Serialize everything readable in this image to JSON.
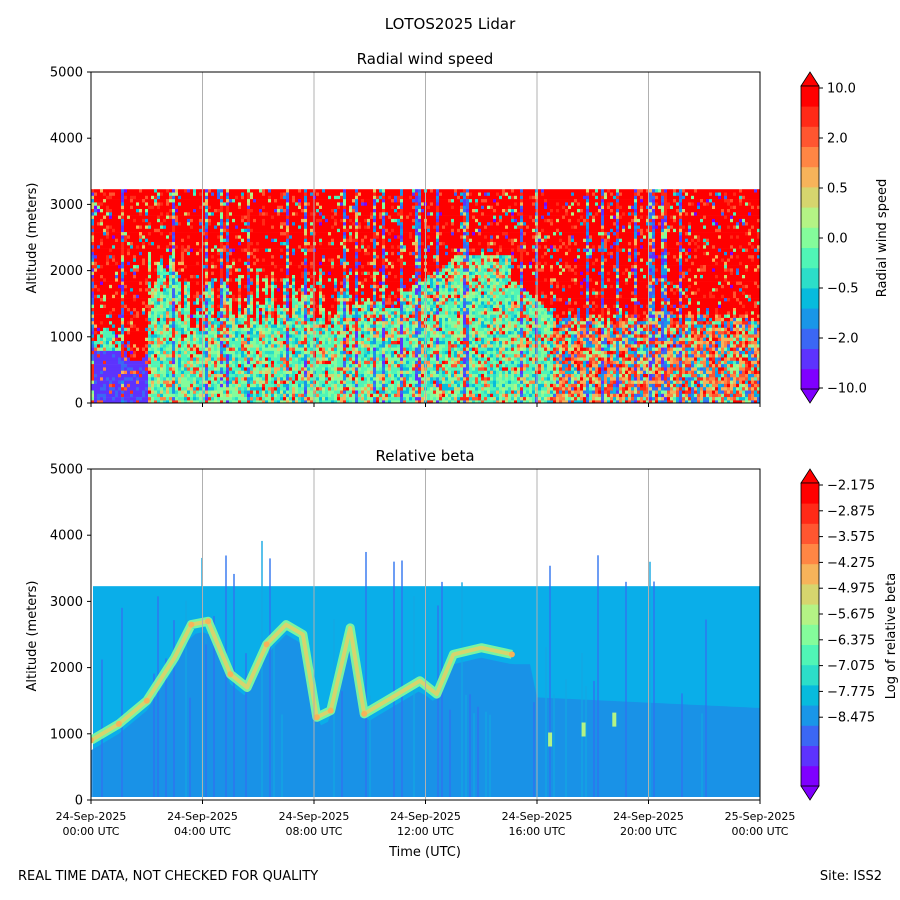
{
  "figure": {
    "suptitle": "LOTOS2025 Lidar",
    "footer_left": "REAL TIME DATA, NOT CHECKED FOR QUALITY",
    "footer_right": "Site: ISS2"
  },
  "chart_data": [
    {
      "type": "heatmap",
      "title": "Radial wind speed",
      "ylabel": "Altitude (meters)",
      "xlabel": "",
      "ylim": [
        0,
        5000
      ],
      "yticks": [
        "0",
        "1000",
        "2000",
        "3000",
        "4000",
        "5000"
      ],
      "x_range_hours": [
        0,
        24
      ],
      "data_top_altitude": 3230,
      "grid": "vertical lines at 4-hour x ticks",
      "colorbar": {
        "label": "Radial wind speed",
        "tick_labels": [
          "10.0",
          "2.0",
          "0.5",
          "0.0",
          "−0.5",
          "−2.0",
          "−10.0"
        ],
        "colors": [
          "#7f00ff",
          "#5d33fd",
          "#3b67f4",
          "#1996e8",
          "#07bbdd",
          "#2cdec9",
          "#50f5b6",
          "#84fc9b",
          "#b4f385",
          "#d6d56e",
          "#f7b35a",
          "#ff8644",
          "#ff5630",
          "#ff2a17",
          "#ff0000"
        ]
      },
      "layers": [
        {
          "name": "upper-red",
          "y_range": [
            1200,
            3230
          ],
          "dominant_color": "#ff1a00"
        },
        {
          "name": "boundary-mixed",
          "y_range": [
            0,
            2300
          ],
          "dominant_color": "#50f5b6"
        },
        {
          "name": "low-blue-night",
          "x_range_hours": [
            0,
            2
          ],
          "y_range": [
            0,
            800
          ],
          "dominant_color": "#5d33fd"
        }
      ]
    },
    {
      "type": "heatmap",
      "title": "Relative beta",
      "ylabel": "Altitude (meters)",
      "xlabel": "Time (UTC)",
      "ylim": [
        0,
        5000
      ],
      "yticks": [
        "0",
        "1000",
        "2000",
        "3000",
        "4000",
        "5000"
      ],
      "x_range_hours": [
        0,
        24
      ],
      "xticks": [
        {
          "date": "24-Sep-2025",
          "time": "00:00 UTC"
        },
        {
          "date": "24-Sep-2025",
          "time": "04:00 UTC"
        },
        {
          "date": "24-Sep-2025",
          "time": "08:00 UTC"
        },
        {
          "date": "24-Sep-2025",
          "time": "12:00 UTC"
        },
        {
          "date": "24-Sep-2025",
          "time": "16:00 UTC"
        },
        {
          "date": "24-Sep-2025",
          "time": "20:00 UTC"
        },
        {
          "date": "25-Sep-2025",
          "time": "00:00 UTC"
        }
      ],
      "data_top_altitude": 3230,
      "grid": "vertical lines at 4-hour x ticks",
      "colorbar": {
        "label": "Log of relative beta",
        "tick_labels": [
          "−2.175",
          "−2.875",
          "−3.575",
          "−4.275",
          "−4.975",
          "−5.675",
          "−6.375",
          "−7.075",
          "−7.775",
          "−8.475"
        ],
        "colors": [
          "#7f00ff",
          "#5d33fd",
          "#3b67f4",
          "#1996e8",
          "#07bbdd",
          "#2cdec9",
          "#50f5b6",
          "#84fc9b",
          "#b4f385",
          "#d6d56e",
          "#f7b35a",
          "#ff8644",
          "#ff5630",
          "#ff2a17",
          "#ff0000"
        ]
      },
      "background_color": "#0aaee9",
      "aerosol_layer": [
        {
          "t": 0.0,
          "alt": 900
        },
        {
          "t": 1.0,
          "alt": 1150
        },
        {
          "t": 2.0,
          "alt": 1500
        },
        {
          "t": 3.0,
          "alt": 2150
        },
        {
          "t": 3.6,
          "alt": 2650
        },
        {
          "t": 4.2,
          "alt": 2700
        },
        {
          "t": 5.0,
          "alt": 1900
        },
        {
          "t": 5.6,
          "alt": 1700
        },
        {
          "t": 6.3,
          "alt": 2350
        },
        {
          "t": 7.0,
          "alt": 2650
        },
        {
          "t": 7.6,
          "alt": 2500
        },
        {
          "t": 8.1,
          "alt": 1250
        },
        {
          "t": 8.6,
          "alt": 1350
        },
        {
          "t": 9.3,
          "alt": 2600
        },
        {
          "t": 9.8,
          "alt": 1300
        },
        {
          "t": 10.8,
          "alt": 1550
        },
        {
          "t": 11.8,
          "alt": 1800
        },
        {
          "t": 12.4,
          "alt": 1600
        },
        {
          "t": 13.0,
          "alt": 2200
        },
        {
          "t": 14.0,
          "alt": 2300
        },
        {
          "t": 15.1,
          "alt": 2200
        }
      ],
      "small_features": [
        {
          "t": 16.4,
          "alt": 900
        },
        {
          "t": 17.6,
          "alt": 1050
        },
        {
          "t": 18.7,
          "alt": 1200
        }
      ]
    }
  ]
}
